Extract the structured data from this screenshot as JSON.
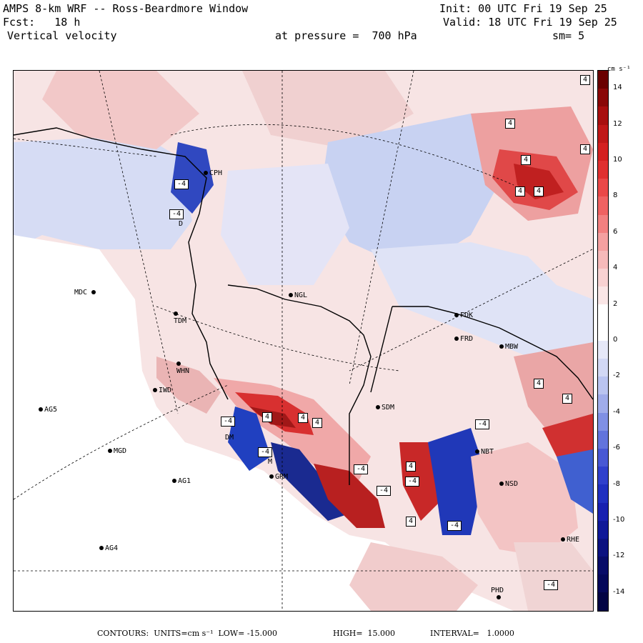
{
  "header": {
    "model": "AMPS 8-km WRF -- Ross-Beardmore Window",
    "init": "Init: 00 UTC Fri 19 Sep 25",
    "fcst": "Fcst:   18 h",
    "valid": "Valid: 18 UTC Fri 19 Sep 25",
    "field": "Vertical velocity",
    "level": "at pressure =  700 hPa",
    "smooth": "sm= 5"
  },
  "stations": [
    {
      "label": "CPH"
    },
    {
      "label": "MDC"
    },
    {
      "label": "NGL"
    },
    {
      "label": "TDM"
    },
    {
      "label": "WHN"
    },
    {
      "label": "IWD"
    },
    {
      "label": "AG5"
    },
    {
      "label": "MGD"
    },
    {
      "label": "AG1"
    },
    {
      "label": "AG4"
    },
    {
      "label": "GRM"
    },
    {
      "label": "SDM"
    },
    {
      "label": "FDK"
    },
    {
      "label": "FRD"
    },
    {
      "label": "MBW"
    },
    {
      "label": "NBT"
    },
    {
      "label": "NSD"
    },
    {
      "label": "PHD"
    },
    {
      "label": "DM"
    },
    {
      "label": "M"
    },
    {
      "label": "D"
    },
    {
      "label": "RHE"
    }
  ],
  "contour_labels": [
    "4",
    "4",
    "4",
    "4",
    "4",
    "4",
    "4",
    "4",
    "4",
    "4",
    "4",
    "4",
    "4",
    "-4",
    "-4",
    "-4",
    "-4",
    "-4",
    "-4",
    "-4",
    "-4",
    "-4",
    "-4"
  ],
  "colorbar": {
    "unit": "cm s⁻¹",
    "ticks": [
      "14",
      "12",
      "10",
      "8",
      "6",
      "4",
      "2",
      "0",
      "-2",
      "-4",
      "-6",
      "-8",
      "-10",
      "-12",
      "-14"
    ],
    "min": -15,
    "max": 15
  },
  "footer": {
    "contours": "CONTOURS:  UNITS=cm s⁻¹  LOW= -15.000",
    "high": "HIGH=  15.000",
    "interval": "INTERVAL=   1.0000"
  },
  "colors": {
    "red": "#d83030",
    "blue": "#3050d0",
    "pink": "#f6d8d8",
    "lightblue": "#c8d0f0"
  }
}
